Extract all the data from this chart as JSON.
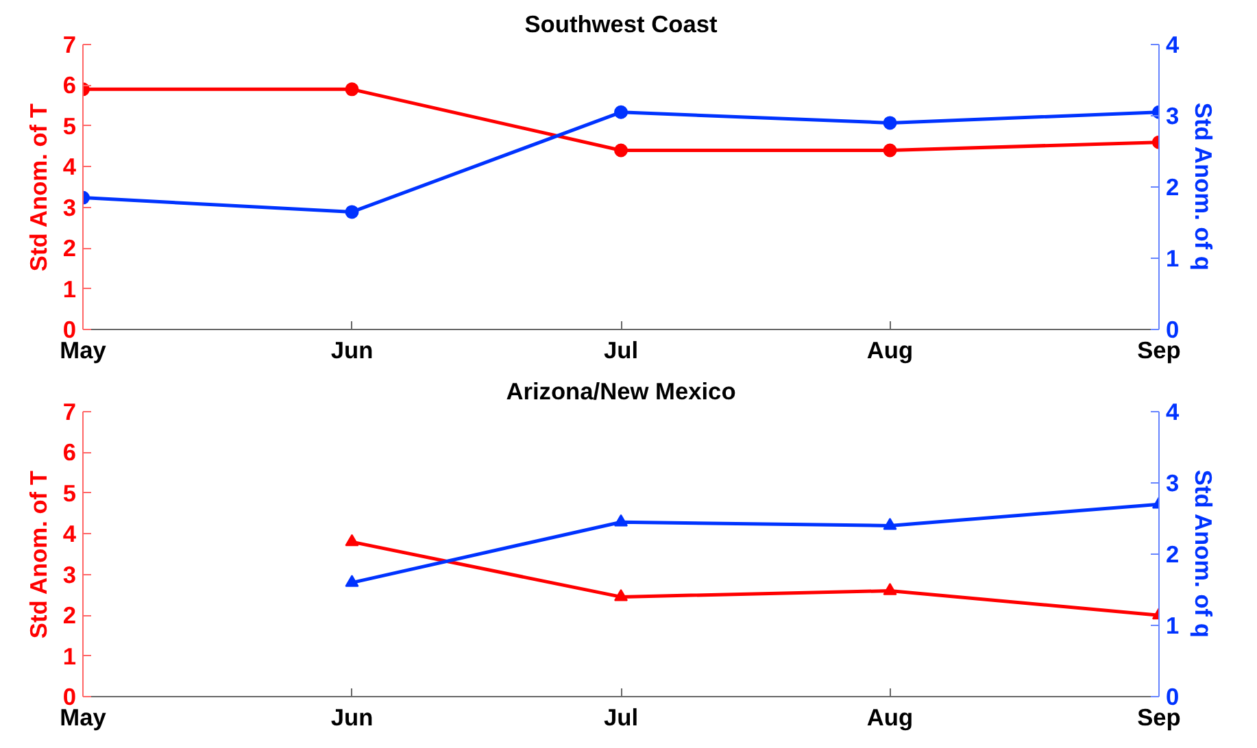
{
  "chart_data": [
    {
      "type": "line",
      "title": "Southwest Coast",
      "categories": [
        "May",
        "Jun",
        "Jul",
        "Aug",
        "Sep"
      ],
      "ylabel": "Std Anom. of T",
      "y2label": "Std Anom. of q",
      "ylim": [
        0,
        7
      ],
      "yticks": [
        0,
        1,
        2,
        3,
        4,
        5,
        6,
        7
      ],
      "y2lim": [
        0,
        4
      ],
      "y2ticks": [
        0,
        1,
        2,
        3,
        4
      ],
      "grid": false,
      "marker": "circle",
      "series": [
        {
          "color": "#ff0000",
          "values": [
            5.9,
            5.9,
            4.4,
            4.4,
            4.6
          ]
        },
        {
          "color": "#0033ff",
          "axis": "y2",
          "values": [
            1.85,
            1.65,
            3.05,
            2.9,
            3.05
          ]
        }
      ]
    },
    {
      "type": "line",
      "title": "Arizona/New Mexico",
      "categories": [
        "May",
        "Jun",
        "Jul",
        "Aug",
        "Sep"
      ],
      "ylabel": "Std Anom. of T",
      "y2label": "Std Anom. of q",
      "ylim": [
        0,
        7
      ],
      "yticks": [
        0,
        1,
        2,
        3,
        4,
        5,
        6,
        7
      ],
      "y2lim": [
        0,
        4
      ],
      "y2ticks": [
        0,
        1,
        2,
        3,
        4
      ],
      "grid": false,
      "marker": "triangle",
      "series": [
        {
          "color": "#ff0000",
          "values": [
            null,
            3.8,
            2.45,
            2.6,
            2.0
          ]
        },
        {
          "color": "#0033ff",
          "axis": "y2",
          "values": [
            null,
            1.6,
            2.45,
            2.4,
            2.7
          ]
        }
      ]
    }
  ]
}
